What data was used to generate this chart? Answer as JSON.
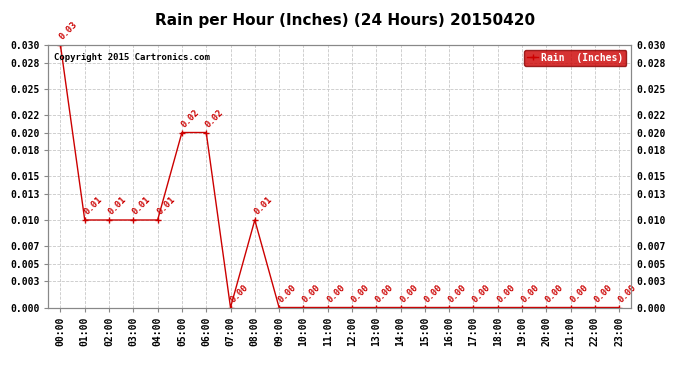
{
  "title": "Rain per Hour (Inches) (24 Hours) 20150420",
  "copyright": "Copyright 2015 Cartronics.com",
  "legend_label": "Rain  (Inches)",
  "hours": [
    "00:00",
    "01:00",
    "02:00",
    "03:00",
    "04:00",
    "05:00",
    "06:00",
    "07:00",
    "08:00",
    "09:00",
    "10:00",
    "11:00",
    "12:00",
    "13:00",
    "14:00",
    "15:00",
    "16:00",
    "17:00",
    "18:00",
    "19:00",
    "20:00",
    "21:00",
    "22:00",
    "23:00"
  ],
  "values": [
    0.03,
    0.01,
    0.01,
    0.01,
    0.01,
    0.02,
    0.02,
    0.0,
    0.01,
    0.0,
    0.0,
    0.0,
    0.0,
    0.0,
    0.0,
    0.0,
    0.0,
    0.0,
    0.0,
    0.0,
    0.0,
    0.0,
    0.0,
    0.0
  ],
  "line_color": "#cc0000",
  "marker_color": "#cc0000",
  "bg_color": "#ffffff",
  "grid_color": "#c8c8c8",
  "legend_bg": "#cc0000",
  "legend_text_color": "#ffffff",
  "ylim": [
    0.0,
    0.03
  ],
  "yticks": [
    0.0,
    0.003,
    0.005,
    0.007,
    0.01,
    0.013,
    0.015,
    0.018,
    0.02,
    0.022,
    0.025,
    0.028,
    0.03
  ],
  "annotation_color": "#cc0000",
  "annotation_fontsize": 6.5,
  "title_fontsize": 11,
  "copyright_fontsize": 6.5,
  "tick_fontsize": 7
}
